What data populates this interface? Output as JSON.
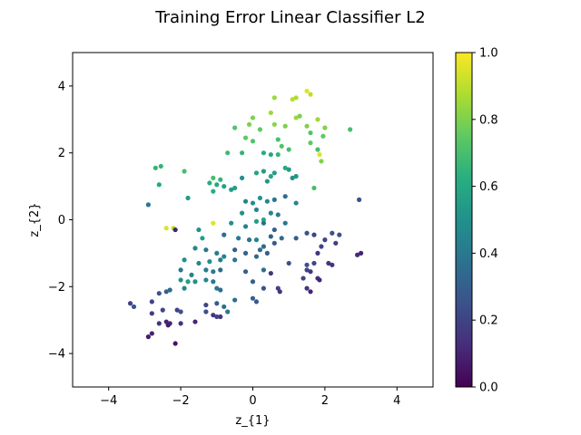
{
  "chart_data": {
    "type": "scatter",
    "title": "Training Error Linear Classifier L2",
    "xlabel": "z_{1}",
    "ylabel": "z_{2}",
    "xlim": [
      -5,
      5
    ],
    "ylim": [
      -5,
      5
    ],
    "xticks": [
      -4,
      -2,
      0,
      2,
      4
    ],
    "yticks": [
      -4,
      -2,
      0,
      2,
      4
    ],
    "grid": false,
    "colormap": "viridis",
    "colorbar": {
      "min": 0.0,
      "max": 1.0,
      "ticks": [
        0.0,
        0.2,
        0.4,
        0.6,
        0.8,
        1.0
      ]
    },
    "points": [
      {
        "x": 0.6,
        "y": 3.65,
        "c": 0.85
      },
      {
        "x": 1.5,
        "y": 3.85,
        "c": 0.95
      },
      {
        "x": 1.1,
        "y": 3.6,
        "c": 0.9
      },
      {
        "x": 1.2,
        "y": 3.65,
        "c": 0.88
      },
      {
        "x": 1.6,
        "y": 3.75,
        "c": 0.9
      },
      {
        "x": 1.2,
        "y": 3.05,
        "c": 0.85
      },
      {
        "x": 1.3,
        "y": 3.1,
        "c": 0.8
      },
      {
        "x": 1.5,
        "y": 2.8,
        "c": 0.8
      },
      {
        "x": 1.8,
        "y": 3.0,
        "c": 0.85
      },
      {
        "x": 2.0,
        "y": 2.75,
        "c": 0.8
      },
      {
        "x": 0.9,
        "y": 2.8,
        "c": 0.8
      },
      {
        "x": 0.6,
        "y": 2.85,
        "c": 0.82
      },
      {
        "x": 0.5,
        "y": 3.2,
        "c": 0.85
      },
      {
        "x": 0.0,
        "y": 3.05,
        "c": 0.8
      },
      {
        "x": -0.1,
        "y": 2.85,
        "c": 0.8
      },
      {
        "x": 0.2,
        "y": 2.7,
        "c": 0.75
      },
      {
        "x": -0.5,
        "y": 2.75,
        "c": 0.72
      },
      {
        "x": -0.2,
        "y": 2.45,
        "c": 0.75
      },
      {
        "x": 0.0,
        "y": 2.35,
        "c": 0.72
      },
      {
        "x": 0.7,
        "y": 2.4,
        "c": 0.7
      },
      {
        "x": 0.8,
        "y": 2.2,
        "c": 0.72
      },
      {
        "x": 1.0,
        "y": 2.1,
        "c": 0.7
      },
      {
        "x": 0.5,
        "y": 1.95,
        "c": 0.6
      },
      {
        "x": 0.7,
        "y": 1.95,
        "c": 0.65
      },
      {
        "x": 1.6,
        "y": 2.3,
        "c": 0.75
      },
      {
        "x": 1.8,
        "y": 2.1,
        "c": 0.7
      },
      {
        "x": 1.85,
        "y": 1.95,
        "c": 0.95
      },
      {
        "x": 1.9,
        "y": 1.75,
        "c": 0.8
      },
      {
        "x": 2.7,
        "y": 2.7,
        "c": 0.7
      },
      {
        "x": 1.95,
        "y": 2.5,
        "c": 0.75
      },
      {
        "x": 1.6,
        "y": 2.6,
        "c": 0.72
      },
      {
        "x": -0.7,
        "y": 2.0,
        "c": 0.68
      },
      {
        "x": -0.3,
        "y": 2.0,
        "c": 0.65
      },
      {
        "x": 0.3,
        "y": 2.0,
        "c": 0.62
      },
      {
        "x": -2.7,
        "y": 1.55,
        "c": 0.65
      },
      {
        "x": -2.55,
        "y": 1.6,
        "c": 0.65
      },
      {
        "x": -1.9,
        "y": 1.45,
        "c": 0.7
      },
      {
        "x": -2.6,
        "y": 1.05,
        "c": 0.6
      },
      {
        "x": -1.2,
        "y": 1.1,
        "c": 0.62
      },
      {
        "x": -1.1,
        "y": 1.25,
        "c": 0.7
      },
      {
        "x": -0.9,
        "y": 1.2,
        "c": 0.65
      },
      {
        "x": -0.8,
        "y": 1.0,
        "c": 0.58
      },
      {
        "x": -1.0,
        "y": 1.05,
        "c": 0.6
      },
      {
        "x": -0.5,
        "y": 0.95,
        "c": 0.55
      },
      {
        "x": -0.3,
        "y": 1.25,
        "c": 0.5
      },
      {
        "x": 0.1,
        "y": 1.4,
        "c": 0.58
      },
      {
        "x": 0.3,
        "y": 1.45,
        "c": 0.55
      },
      {
        "x": 0.4,
        "y": 1.15,
        "c": 0.52
      },
      {
        "x": 0.5,
        "y": 1.3,
        "c": 0.6
      },
      {
        "x": 0.6,
        "y": 1.4,
        "c": 0.55
      },
      {
        "x": 0.9,
        "y": 1.55,
        "c": 0.6
      },
      {
        "x": 1.0,
        "y": 1.5,
        "c": 0.55
      },
      {
        "x": 1.1,
        "y": 1.25,
        "c": 0.5
      },
      {
        "x": 1.2,
        "y": 1.3,
        "c": 0.52
      },
      {
        "x": 1.7,
        "y": 0.95,
        "c": 0.7
      },
      {
        "x": 1.2,
        "y": 0.5,
        "c": 0.45
      },
      {
        "x": -1.8,
        "y": 0.65,
        "c": 0.55
      },
      {
        "x": -2.9,
        "y": 0.45,
        "c": 0.4
      },
      {
        "x": -1.1,
        "y": 0.85,
        "c": 0.62
      },
      {
        "x": -0.6,
        "y": 0.9,
        "c": 0.55
      },
      {
        "x": -0.2,
        "y": 0.55,
        "c": 0.45
      },
      {
        "x": 0.0,
        "y": 0.5,
        "c": 0.5
      },
      {
        "x": 0.2,
        "y": 0.65,
        "c": 0.52
      },
      {
        "x": 0.4,
        "y": 0.55,
        "c": 0.45
      },
      {
        "x": 0.6,
        "y": 0.6,
        "c": 0.4
      },
      {
        "x": 0.9,
        "y": 0.7,
        "c": 0.35
      },
      {
        "x": -0.3,
        "y": 0.2,
        "c": 0.5
      },
      {
        "x": 0.1,
        "y": 0.3,
        "c": 0.45
      },
      {
        "x": 0.3,
        "y": 0.0,
        "c": 0.6
      },
      {
        "x": 0.5,
        "y": 0.2,
        "c": 0.45
      },
      {
        "x": 0.7,
        "y": 0.15,
        "c": 0.42
      },
      {
        "x": -2.4,
        "y": -0.25,
        "c": 0.95
      },
      {
        "x": -2.2,
        "y": -0.25,
        "c": 0.9
      },
      {
        "x": -2.15,
        "y": -0.3,
        "c": 0.1
      },
      {
        "x": -1.1,
        "y": -0.1,
        "c": 0.95
      },
      {
        "x": -1.5,
        "y": -0.3,
        "c": 0.5
      },
      {
        "x": -0.6,
        "y": -0.1,
        "c": 0.5
      },
      {
        "x": -0.2,
        "y": -0.2,
        "c": 0.45
      },
      {
        "x": 0.1,
        "y": -0.05,
        "c": 0.55
      },
      {
        "x": 0.3,
        "y": -0.1,
        "c": 0.35
      },
      {
        "x": 0.6,
        "y": -0.3,
        "c": 0.3
      },
      {
        "x": 0.9,
        "y": -0.1,
        "c": 0.4
      },
      {
        "x": -1.4,
        "y": -0.55,
        "c": 0.55
      },
      {
        "x": -0.8,
        "y": -0.45,
        "c": 0.35
      },
      {
        "x": -0.4,
        "y": -0.55,
        "c": 0.4
      },
      {
        "x": -0.1,
        "y": -0.6,
        "c": 0.38
      },
      {
        "x": 0.1,
        "y": -0.6,
        "c": 0.45
      },
      {
        "x": 0.3,
        "y": -0.8,
        "c": 0.35
      },
      {
        "x": 0.5,
        "y": -0.5,
        "c": 0.3
      },
      {
        "x": 0.6,
        "y": -0.7,
        "c": 0.28
      },
      {
        "x": 0.8,
        "y": -0.55,
        "c": 0.35
      },
      {
        "x": 1.2,
        "y": -0.55,
        "c": 0.3
      },
      {
        "x": 1.5,
        "y": -0.4,
        "c": 0.25
      },
      {
        "x": 1.7,
        "y": -0.45,
        "c": 0.2
      },
      {
        "x": 2.2,
        "y": -0.4,
        "c": 0.25
      },
      {
        "x": 2.4,
        "y": -0.45,
        "c": 0.25
      },
      {
        "x": 2.0,
        "y": -0.6,
        "c": 0.2
      },
      {
        "x": 2.3,
        "y": -0.7,
        "c": 0.18
      },
      {
        "x": 1.9,
        "y": -0.8,
        "c": 0.2
      },
      {
        "x": 1.8,
        "y": -1.0,
        "c": 0.15
      },
      {
        "x": 2.95,
        "y": 0.6,
        "c": 0.25
      },
      {
        "x": 3.0,
        "y": -1.0,
        "c": 0.1
      },
      {
        "x": 2.9,
        "y": -1.05,
        "c": 0.12
      },
      {
        "x": -1.6,
        "y": -0.85,
        "c": 0.45
      },
      {
        "x": -1.3,
        "y": -0.9,
        "c": 0.4
      },
      {
        "x": -1.0,
        "y": -1.0,
        "c": 0.42
      },
      {
        "x": -0.8,
        "y": -1.1,
        "c": 0.45
      },
      {
        "x": -0.5,
        "y": -0.9,
        "c": 0.3
      },
      {
        "x": -0.2,
        "y": -1.0,
        "c": 0.32
      },
      {
        "x": 0.2,
        "y": -0.9,
        "c": 0.35
      },
      {
        "x": 0.4,
        "y": -1.0,
        "c": 0.3
      },
      {
        "x": -1.9,
        "y": -1.2,
        "c": 0.5
      },
      {
        "x": -1.5,
        "y": -1.3,
        "c": 0.45
      },
      {
        "x": -1.2,
        "y": -1.25,
        "c": 0.48
      },
      {
        "x": -0.9,
        "y": -1.2,
        "c": 0.42
      },
      {
        "x": -0.5,
        "y": -1.2,
        "c": 0.4
      },
      {
        "x": 0.1,
        "y": -1.1,
        "c": 0.35
      },
      {
        "x": 1.0,
        "y": -1.3,
        "c": 0.25
      },
      {
        "x": 1.5,
        "y": -1.35,
        "c": 0.25
      },
      {
        "x": 1.7,
        "y": -1.3,
        "c": 0.2
      },
      {
        "x": 2.1,
        "y": -1.3,
        "c": 0.15
      },
      {
        "x": 2.2,
        "y": -1.35,
        "c": 0.15
      },
      {
        "x": -2.0,
        "y": -1.5,
        "c": 0.4
      },
      {
        "x": -1.7,
        "y": -1.65,
        "c": 0.45
      },
      {
        "x": -1.3,
        "y": -1.5,
        "c": 0.42
      },
      {
        "x": -1.1,
        "y": -1.55,
        "c": 0.4
      },
      {
        "x": -0.9,
        "y": -1.5,
        "c": 0.35
      },
      {
        "x": -0.2,
        "y": -1.55,
        "c": 0.3
      },
      {
        "x": 0.3,
        "y": -1.5,
        "c": 0.35
      },
      {
        "x": 0.5,
        "y": -1.6,
        "c": 0.15
      },
      {
        "x": 1.5,
        "y": -1.5,
        "c": 0.2
      },
      {
        "x": 1.6,
        "y": -1.55,
        "c": 0.15
      },
      {
        "x": -2.0,
        "y": -1.8,
        "c": 0.5
      },
      {
        "x": -1.8,
        "y": -1.85,
        "c": 0.55
      },
      {
        "x": -1.6,
        "y": -1.85,
        "c": 0.5
      },
      {
        "x": -1.3,
        "y": -1.8,
        "c": 0.45
      },
      {
        "x": -1.1,
        "y": -1.85,
        "c": 0.4
      },
      {
        "x": 0.0,
        "y": -1.85,
        "c": 0.3
      },
      {
        "x": 1.4,
        "y": -1.75,
        "c": 0.2
      },
      {
        "x": 1.8,
        "y": -1.75,
        "c": 0.15
      },
      {
        "x": 1.85,
        "y": -1.8,
        "c": 0.1
      },
      {
        "x": -1.9,
        "y": -2.05,
        "c": 0.45
      },
      {
        "x": -1.0,
        "y": -2.05,
        "c": 0.4
      },
      {
        "x": -0.9,
        "y": -2.1,
        "c": 0.35
      },
      {
        "x": 0.3,
        "y": -2.05,
        "c": 0.25
      },
      {
        "x": 0.7,
        "y": -2.05,
        "c": 0.2
      },
      {
        "x": 0.75,
        "y": -2.15,
        "c": 0.15
      },
      {
        "x": 1.5,
        "y": -2.05,
        "c": 0.15
      },
      {
        "x": 1.6,
        "y": -2.15,
        "c": 0.1
      },
      {
        "x": -2.6,
        "y": -2.2,
        "c": 0.25
      },
      {
        "x": -2.4,
        "y": -2.15,
        "c": 0.3
      },
      {
        "x": -2.3,
        "y": -2.1,
        "c": 0.35
      },
      {
        "x": -0.5,
        "y": -2.4,
        "c": 0.35
      },
      {
        "x": 0.0,
        "y": -2.35,
        "c": 0.3
      },
      {
        "x": 0.1,
        "y": -2.45,
        "c": 0.28
      },
      {
        "x": -3.4,
        "y": -2.5,
        "c": 0.2
      },
      {
        "x": -3.3,
        "y": -2.6,
        "c": 0.25
      },
      {
        "x": -2.8,
        "y": -2.45,
        "c": 0.2
      },
      {
        "x": -1.3,
        "y": -2.55,
        "c": 0.2
      },
      {
        "x": -1.0,
        "y": -2.5,
        "c": 0.3
      },
      {
        "x": -0.8,
        "y": -2.6,
        "c": 0.35
      },
      {
        "x": -2.5,
        "y": -2.7,
        "c": 0.2
      },
      {
        "x": -2.1,
        "y": -2.7,
        "c": 0.2
      },
      {
        "x": -2.0,
        "y": -2.75,
        "c": 0.25
      },
      {
        "x": -1.3,
        "y": -2.75,
        "c": 0.25
      },
      {
        "x": -0.7,
        "y": -2.75,
        "c": 0.4
      },
      {
        "x": -2.8,
        "y": -2.8,
        "c": 0.18
      },
      {
        "x": -1.1,
        "y": -2.85,
        "c": 0.15
      },
      {
        "x": -1.0,
        "y": -2.9,
        "c": 0.2
      },
      {
        "x": -0.9,
        "y": -2.9,
        "c": 0.15
      },
      {
        "x": -2.6,
        "y": -3.1,
        "c": 0.15
      },
      {
        "x": -2.4,
        "y": -3.05,
        "c": 0.1
      },
      {
        "x": -2.3,
        "y": -3.1,
        "c": 0.12
      },
      {
        "x": -2.35,
        "y": -3.15,
        "c": 0.08
      },
      {
        "x": -2.0,
        "y": -3.1,
        "c": 0.15
      },
      {
        "x": -1.6,
        "y": -3.05,
        "c": 0.1
      },
      {
        "x": -2.9,
        "y": -3.5,
        "c": 0.08
      },
      {
        "x": -2.8,
        "y": -3.4,
        "c": 0.1
      },
      {
        "x": -2.15,
        "y": -3.7,
        "c": 0.05
      }
    ]
  }
}
